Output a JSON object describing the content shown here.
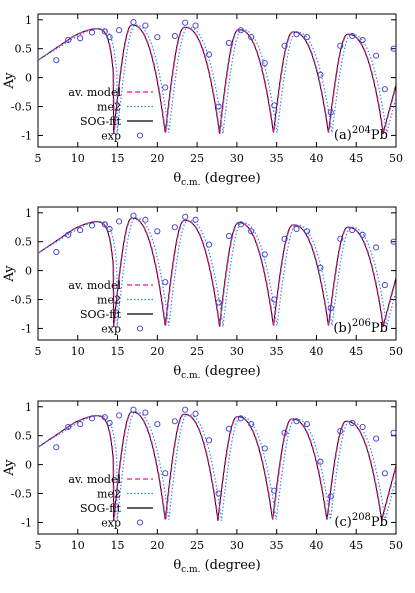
{
  "colors": {
    "av_model": "#e8169a",
    "me2": "#2b8fd6",
    "sog": "#000000",
    "exp": "#3b3bd0",
    "frame": "#000000"
  },
  "chart_data": [
    {
      "type": "line",
      "panel_tag": "(a)",
      "nucleus_mass": "204",
      "nucleus_symbol": "Pb",
      "xlabel_main": "θ",
      "xlabel_sub": "c.m.",
      "xlabel_tail": " (degree)",
      "ylabel": "Ay",
      "xlim": [
        5,
        50
      ],
      "ylim": [
        -1.2,
        1.1
      ],
      "x_ticks": [
        "5",
        "10",
        "15",
        "20",
        "25",
        "30",
        "35",
        "40",
        "45",
        "50"
      ],
      "y_ticks": [
        "1",
        "0.5",
        "0",
        "-0.5",
        "-1"
      ],
      "legend": [
        {
          "label": "av. model",
          "style": "dashed"
        },
        {
          "label": "me2",
          "style": "dotted"
        },
        {
          "label": "SOG-fit",
          "style": "solid"
        },
        {
          "label": "exp",
          "style": "circle"
        }
      ],
      "minima": [
        14.5,
        21.0,
        27.8,
        34.6,
        41.5,
        48.4
      ],
      "me2_shift": 0.45,
      "series": [
        {
          "name": "exp",
          "x": [
            7.3,
            8.8,
            10.3,
            11.8,
            13.4,
            14.0,
            15.2,
            17.0,
            18.5,
            20.0,
            21.0,
            22.2,
            23.5,
            24.8,
            26.5,
            27.7,
            29.0,
            30.5,
            31.8,
            33.5,
            34.7,
            36.0,
            37.5,
            38.8,
            40.5,
            41.8,
            43.0,
            44.5,
            45.8,
            47.5,
            48.6,
            49.7
          ],
          "y": [
            0.3,
            0.65,
            0.68,
            0.78,
            0.8,
            0.7,
            0.82,
            0.96,
            0.9,
            0.7,
            -0.17,
            0.72,
            0.95,
            0.9,
            0.4,
            -0.5,
            0.6,
            0.82,
            0.7,
            0.25,
            -0.48,
            0.55,
            0.75,
            0.7,
            0.05,
            -0.6,
            0.55,
            0.72,
            0.65,
            0.38,
            -0.2,
            0.5
          ]
        }
      ]
    },
    {
      "type": "line",
      "panel_tag": "(b)",
      "nucleus_mass": "206",
      "nucleus_symbol": "Pb",
      "xlabel_main": "θ",
      "xlabel_sub": "c.m.",
      "xlabel_tail": " (degree)",
      "ylabel": "Ay",
      "xlim": [
        5,
        50
      ],
      "ylim": [
        -1.2,
        1.1
      ],
      "x_ticks": [
        "5",
        "10",
        "15",
        "20",
        "25",
        "30",
        "35",
        "40",
        "45",
        "50"
      ],
      "y_ticks": [
        "1",
        "0.5",
        "0",
        "-0.5",
        "-1"
      ],
      "legend": [
        {
          "label": "av. model",
          "style": "dashed"
        },
        {
          "label": "me2",
          "style": "dotted"
        },
        {
          "label": "SOG-fit",
          "style": "solid"
        },
        {
          "label": "exp",
          "style": "circle"
        }
      ],
      "minima": [
        14.5,
        21.0,
        27.8,
        34.6,
        41.5,
        48.4
      ],
      "me2_shift": 0.45,
      "series": [
        {
          "name": "exp",
          "x": [
            7.3,
            8.8,
            10.3,
            11.8,
            13.4,
            14.0,
            15.2,
            17.0,
            18.5,
            20.0,
            21.0,
            22.2,
            23.5,
            24.8,
            26.5,
            27.7,
            29.0,
            30.5,
            31.8,
            33.5,
            34.7,
            36.0,
            37.5,
            38.8,
            40.5,
            41.8,
            43.0,
            44.5,
            45.8,
            47.5,
            48.6,
            49.7
          ],
          "y": [
            0.32,
            0.62,
            0.7,
            0.78,
            0.8,
            0.72,
            0.85,
            0.95,
            0.88,
            0.68,
            -0.2,
            0.75,
            0.93,
            0.88,
            0.45,
            -0.55,
            0.6,
            0.8,
            0.68,
            0.28,
            -0.5,
            0.55,
            0.72,
            0.68,
            0.05,
            -0.65,
            0.55,
            0.7,
            0.62,
            0.4,
            -0.25,
            0.5
          ]
        }
      ]
    },
    {
      "type": "line",
      "panel_tag": "(c)",
      "nucleus_mass": "208",
      "nucleus_symbol": "Pb",
      "xlabel_main": "θ",
      "xlabel_sub": "c.m.",
      "xlabel_tail": " (degree)",
      "ylabel": "Ay",
      "xlim": [
        5,
        50
      ],
      "ylim": [
        -1.2,
        1.1
      ],
      "x_ticks": [
        "5",
        "10",
        "15",
        "20",
        "25",
        "30",
        "35",
        "40",
        "45",
        "50"
      ],
      "y_ticks": [
        "1",
        "0.5",
        "0",
        "-0.5",
        "-1"
      ],
      "legend": [
        {
          "label": "av. model",
          "style": "dashed"
        },
        {
          "label": "me2",
          "style": "dotted"
        },
        {
          "label": "SOG-fit",
          "style": "solid"
        },
        {
          "label": "exp",
          "style": "circle"
        }
      ],
      "minima": [
        14.5,
        21.0,
        27.6,
        34.5,
        41.3,
        48.2
      ],
      "me2_shift": 0.45,
      "series": [
        {
          "name": "exp",
          "x": [
            7.3,
            8.8,
            10.3,
            11.8,
            13.4,
            14.0,
            15.2,
            17.0,
            18.5,
            20.0,
            21.0,
            22.2,
            23.5,
            24.8,
            26.5,
            27.7,
            29.0,
            30.5,
            31.8,
            33.5,
            34.7,
            36.0,
            37.5,
            38.8,
            40.5,
            41.8,
            43.0,
            44.5,
            45.8,
            47.5,
            48.6,
            49.7
          ],
          "y": [
            0.3,
            0.65,
            0.7,
            0.8,
            0.82,
            0.72,
            0.85,
            0.95,
            0.9,
            0.7,
            -0.15,
            0.75,
            0.95,
            0.88,
            0.42,
            -0.5,
            0.62,
            0.8,
            0.7,
            0.28,
            -0.45,
            0.55,
            0.75,
            0.7,
            0.05,
            -0.55,
            0.58,
            0.72,
            0.65,
            0.45,
            -0.15,
            0.55
          ]
        }
      ]
    }
  ]
}
